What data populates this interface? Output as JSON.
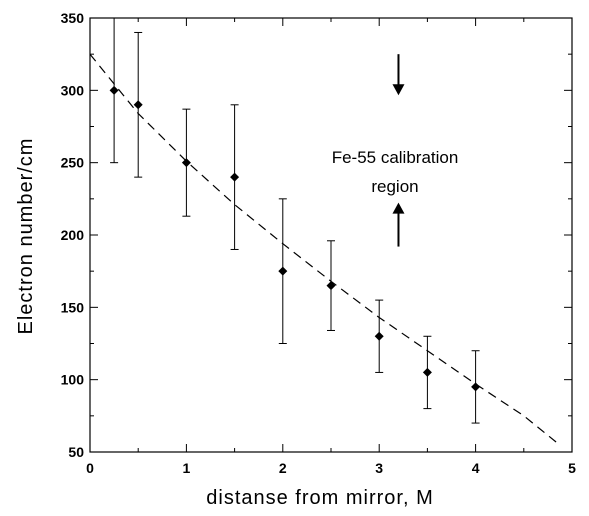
{
  "chart_data": {
    "type": "scatter",
    "xlabel": "distanse from mirror, M",
    "ylabel": "Electron number/cm",
    "xlim": [
      0,
      5
    ],
    "ylim": [
      50,
      350
    ],
    "xticks": [
      "0",
      "1",
      "2",
      "3",
      "4",
      "5"
    ],
    "yticks": [
      "50",
      "100",
      "150",
      "200",
      "250",
      "300",
      "350"
    ],
    "grid": false,
    "series": [
      {
        "points": [
          {
            "x": 0.25,
            "y": 300,
            "err_low": 250,
            "err_high": 350
          },
          {
            "x": 0.5,
            "y": 290,
            "err_low": 240,
            "err_high": 340
          },
          {
            "x": 1.0,
            "y": 250,
            "err_low": 213,
            "err_high": 287
          },
          {
            "x": 1.5,
            "y": 240,
            "err_low": 190,
            "err_high": 290
          },
          {
            "x": 2.0,
            "y": 175,
            "err_low": 125,
            "err_high": 225
          },
          {
            "x": 2.5,
            "y": 165,
            "err_low": 134,
            "err_high": 196
          },
          {
            "x": 3.0,
            "y": 130,
            "err_low": 105,
            "err_high": 155
          },
          {
            "x": 3.5,
            "y": 105,
            "err_low": 80,
            "err_high": 130
          },
          {
            "x": 4.0,
            "y": 95,
            "err_low": 70,
            "err_high": 120
          }
        ]
      }
    ],
    "fit_curve": {
      "style": "dashed",
      "x": [
        0.0,
        0.5,
        1.0,
        1.5,
        2.0,
        2.5,
        3.0,
        3.5,
        4.0,
        4.5,
        4.87
      ],
      "y": [
        325,
        284,
        251,
        221,
        194,
        168,
        143,
        120,
        97,
        75,
        55
      ]
    },
    "annotation": {
      "line1": "Fe-55  calibration",
      "line2": "region",
      "x": 3.2,
      "arrow_down_from": 325,
      "arrow_down_to": 298,
      "arrow_up_from": 192,
      "arrow_up_to": 221
    }
  }
}
